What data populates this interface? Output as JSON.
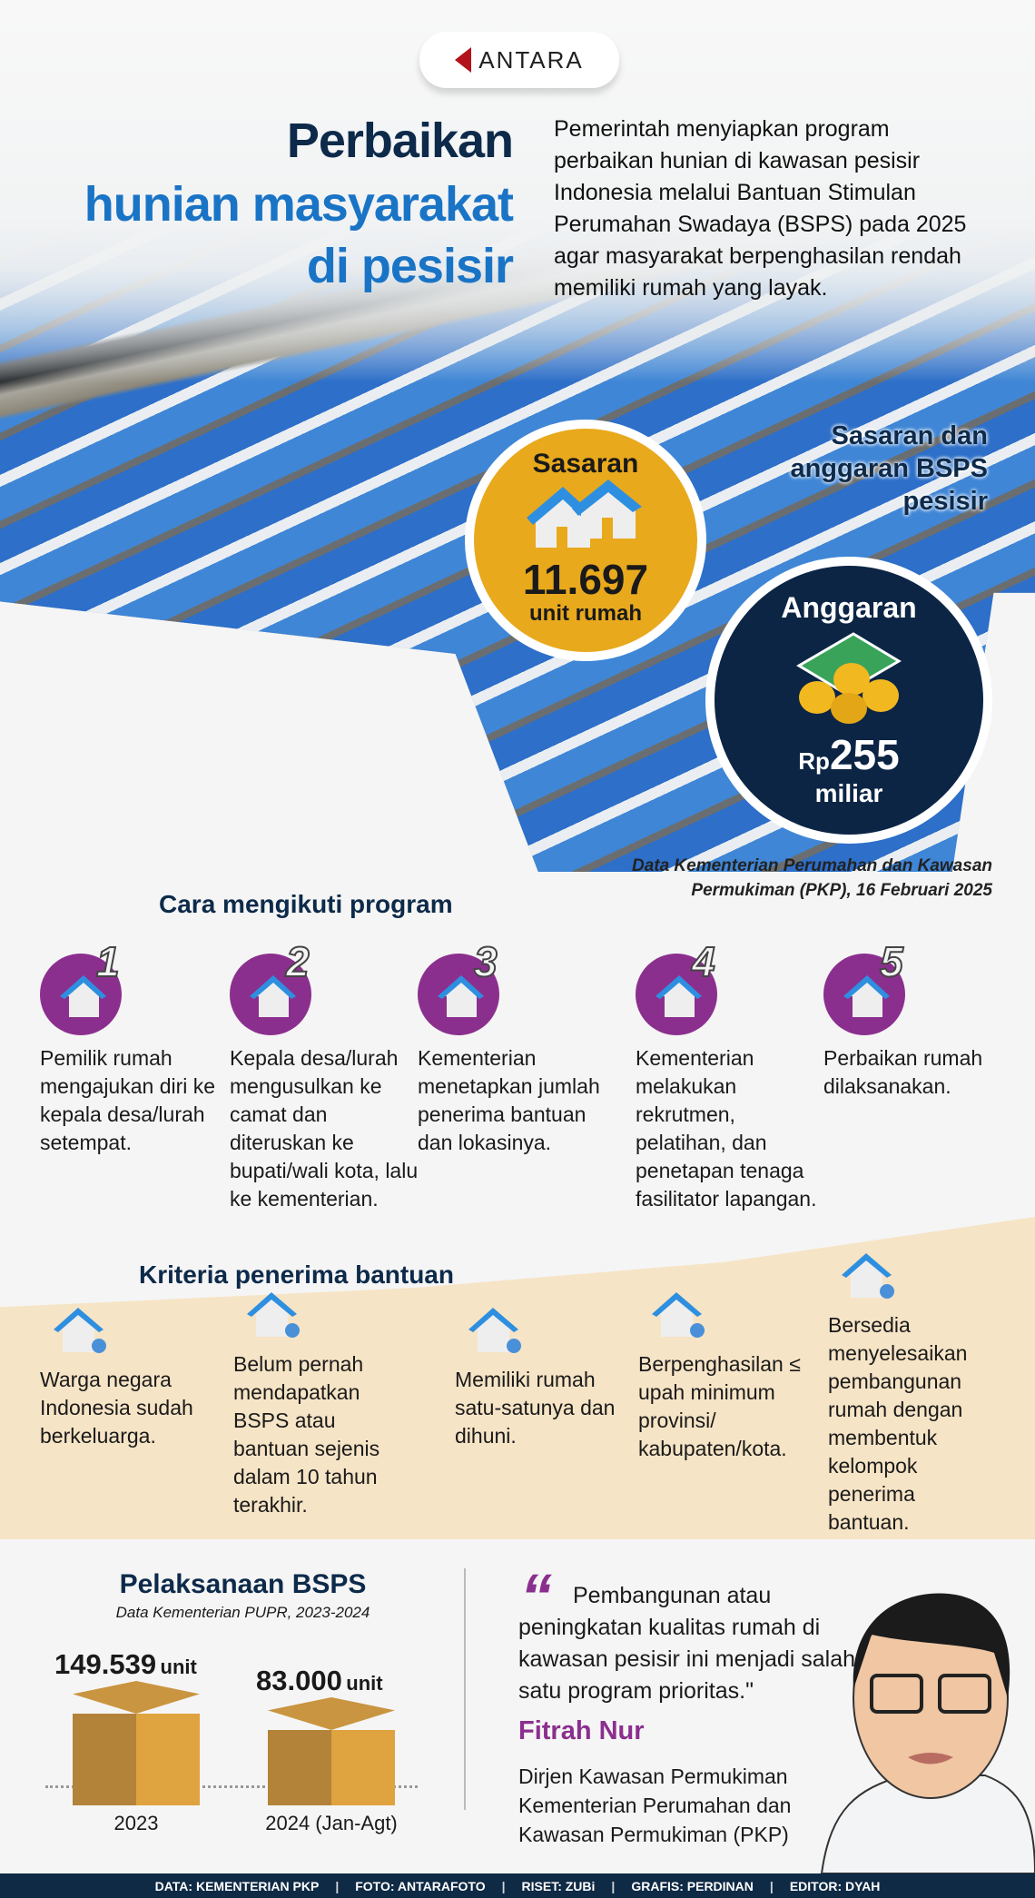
{
  "logo": {
    "text": "ANTARA"
  },
  "title": {
    "line1": "Perbaikan",
    "line2": "hunian masyarakat",
    "line3": "di pesisir"
  },
  "intro": "Pemerintah menyiapkan program perbaikan hunian di kawasan pesisir Indonesia melalui Bantuan Stimulan Perumahan Swadaya (BSPS) pada 2025 agar masyarakat berpenghasilan rendah memiliki rumah yang layak.",
  "targets": {
    "heading": "Sasaran dan anggaran BSPS pesisir",
    "sasaran": {
      "label": "Sasaran",
      "value": "11.697",
      "unit": "unit rumah",
      "icon": "houses-icon"
    },
    "anggaran": {
      "label": "Anggaran",
      "prefix": "Rp",
      "value": "255",
      "unit": "miliar",
      "icon": "money-coins-icon"
    },
    "source": "Data Kementerian Perumahan dan Kawasan Permukiman (PKP), 16 Februari 2025"
  },
  "steps": {
    "heading": "Cara mengikuti program",
    "items": [
      {
        "num": "1",
        "text": "Pemilik rumah mengajukan diri ke kepala desa/lurah setempat."
      },
      {
        "num": "2",
        "text": "Kepala desa/lurah mengusulkan ke camat dan diteruskan ke bupati/wali kota, lalu ke kementerian."
      },
      {
        "num": "3",
        "text": "Kementerian menetapkan jumlah penerima bantuan dan lokasinya."
      },
      {
        "num": "4",
        "text": "Kementerian melakukan rekrutmen, pelatihan, dan penetapan tenaga fasilitator lapangan."
      },
      {
        "num": "5",
        "text": "Perbaikan rumah dilaksanakan."
      }
    ]
  },
  "criteria": {
    "heading": "Kriteria penerima bantuan",
    "items": [
      {
        "text": "Warga negara Indonesia sudah berkeluarga."
      },
      {
        "text": "Belum pernah mendapatkan BSPS atau bantuan sejenis dalam 10 tahun terakhir."
      },
      {
        "text": "Memiliki rumah satu-satunya dan dihuni."
      },
      {
        "text": "Berpenghasilan ≤ upah minimum provinsi/ kabupaten/kota."
      },
      {
        "text": "Bersedia menyelesaikan pembangunan rumah dengan membentuk kelompok penerima bantuan."
      }
    ]
  },
  "implementation": {
    "title": "Pelaksanaan BSPS",
    "source": "Data Kementerian PUPR, 2023-2024",
    "colors": {
      "box_dark": "#b3833a",
      "box_light": "#dfa33f"
    },
    "bars": [
      {
        "value": "149.539",
        "unit": "unit",
        "label": "2023"
      },
      {
        "value": "83.000",
        "unit": "unit",
        "label": "2024 (Jan-Agt)"
      }
    ]
  },
  "quote": {
    "text": "Pembangunan atau peningkatan kualitas rumah di kawasan pesisir ini menjadi salah satu program prioritas.\"",
    "name": "Fitrah Nur",
    "role": "Dirjen Kawasan Permukiman Kementerian Perumahan dan Kawasan Permukiman (PKP)"
  },
  "footer": [
    "DATA: KEMENTERIAN PKP",
    "FOTO: ANTARAFOTO",
    "RISET: ZUBi",
    "GRAFIS: PERDINAN",
    "EDITOR: DYAH"
  ]
}
